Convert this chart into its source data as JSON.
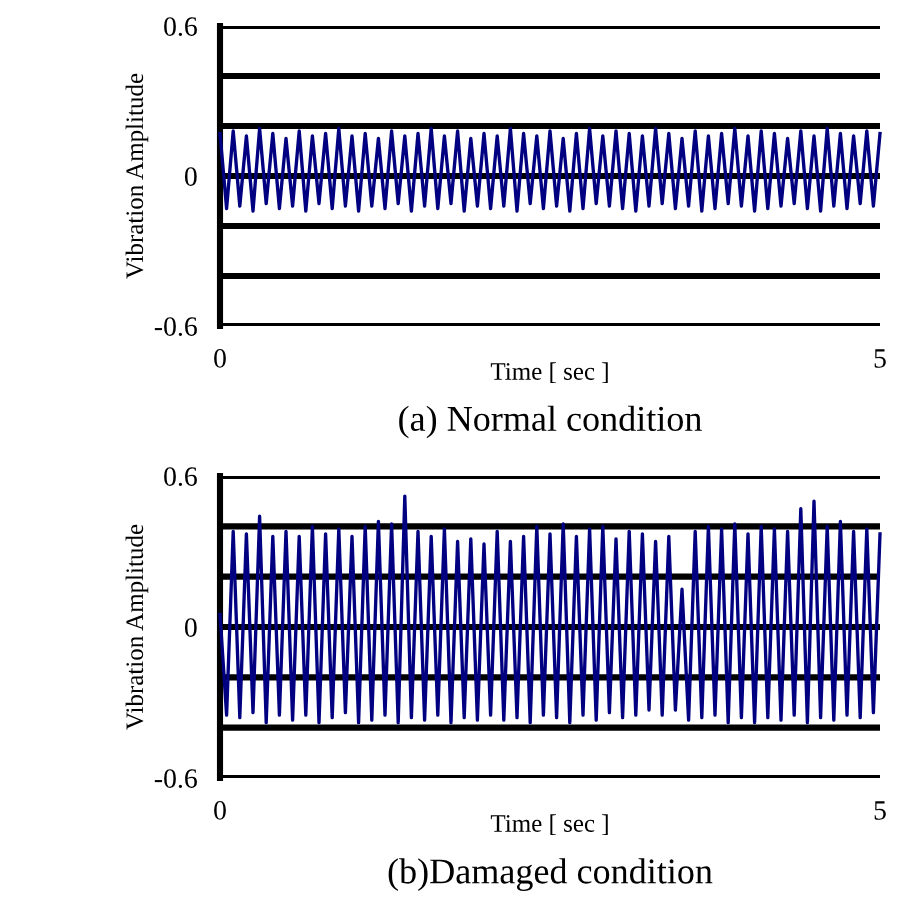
{
  "chart_data": [
    {
      "type": "line",
      "xlabel": "Time [ sec ]",
      "ylabel": "Vibration Amplitude",
      "annotations": [
        "(a) Normal condition"
      ],
      "x": [
        0,
        0.05,
        0.1,
        0.15,
        0.2,
        0.25,
        0.3,
        0.35,
        0.4,
        0.45,
        0.5,
        0.55,
        0.6,
        0.65,
        0.7,
        0.75,
        0.8,
        0.85,
        0.9,
        0.95,
        1.0,
        1.05,
        1.1,
        1.15,
        1.2,
        1.25,
        1.3,
        1.35,
        1.4,
        1.45,
        1.5,
        1.55,
        1.6,
        1.65,
        1.7,
        1.75,
        1.8,
        1.85,
        1.9,
        1.95,
        2.0,
        2.05,
        2.1,
        2.15,
        2.2,
        2.25,
        2.3,
        2.35,
        2.4,
        2.45,
        2.5,
        2.55,
        2.6,
        2.65,
        2.7,
        2.75,
        2.8,
        2.85,
        2.9,
        2.95,
        3.0,
        3.05,
        3.1,
        3.15,
        3.2,
        3.25,
        3.3,
        3.35,
        3.4,
        3.45,
        3.5,
        3.55,
        3.6,
        3.65,
        3.7,
        3.75,
        3.8,
        3.85,
        3.9,
        3.95,
        4.0,
        4.05,
        4.1,
        4.15,
        4.2,
        4.25,
        4.3,
        4.35,
        4.4,
        4.45,
        4.5,
        4.55,
        4.6,
        4.65,
        4.7,
        4.75,
        4.8,
        4.85,
        4.9,
        4.95,
        5.0
      ],
      "series": [
        {
          "color": "#000080",
          "values": [
            0.17,
            -0.13,
            0.18,
            -0.12,
            0.16,
            -0.14,
            0.19,
            -0.11,
            0.17,
            -0.13,
            0.15,
            -0.12,
            0.18,
            -0.14,
            0.16,
            -0.11,
            0.17,
            -0.13,
            0.19,
            -0.12,
            0.16,
            -0.14,
            0.17,
            -0.12,
            0.15,
            -0.13,
            0.18,
            -0.11,
            0.16,
            -0.14,
            0.17,
            -0.12,
            0.19,
            -0.13,
            0.16,
            -0.11,
            0.18,
            -0.14,
            0.15,
            -0.12,
            0.17,
            -0.13,
            0.16,
            -0.12,
            0.19,
            -0.14,
            0.17,
            -0.11,
            0.16,
            -0.13,
            0.18,
            -0.12,
            0.15,
            -0.14,
            0.17,
            -0.13,
            0.19,
            -0.11,
            0.16,
            -0.12,
            0.18,
            -0.13,
            0.17,
            -0.14,
            0.16,
            -0.12,
            0.19,
            -0.11,
            0.17,
            -0.13,
            0.15,
            -0.12,
            0.18,
            -0.14,
            0.16,
            -0.13,
            0.17,
            -0.11,
            0.19,
            -0.12,
            0.16,
            -0.14,
            0.18,
            -0.13,
            0.17,
            -0.12,
            0.15,
            -0.11,
            0.18,
            -0.13,
            0.16,
            -0.14,
            0.19,
            -0.12,
            0.17,
            -0.13,
            0.16,
            -0.11,
            0.18,
            -0.12,
            0.17
          ]
        }
      ],
      "xlim": [
        0,
        5
      ],
      "xticks": [
        0,
        5
      ],
      "ylim": [
        -0.6,
        0.6
      ],
      "yticks": [
        -0.6,
        {
          "value": -0.4,
          "label": null
        },
        {
          "value": -0.2,
          "label": null
        },
        0,
        {
          "value": 0.2,
          "label": null
        },
        {
          "value": 0.4,
          "label": null
        },
        0.6
      ],
      "grid": "y"
    },
    {
      "type": "line",
      "xlabel": "Time [ sec ]",
      "ylabel": "Vibration Amplitude",
      "annotations": [
        "(b)Damaged condition"
      ],
      "x": [
        0,
        0.05,
        0.1,
        0.15,
        0.2,
        0.25,
        0.3,
        0.35,
        0.4,
        0.45,
        0.5,
        0.55,
        0.6,
        0.65,
        0.7,
        0.75,
        0.8,
        0.85,
        0.9,
        0.95,
        1.0,
        1.05,
        1.1,
        1.15,
        1.2,
        1.25,
        1.3,
        1.35,
        1.4,
        1.45,
        1.5,
        1.55,
        1.6,
        1.65,
        1.7,
        1.75,
        1.8,
        1.85,
        1.9,
        1.95,
        2.0,
        2.05,
        2.1,
        2.15,
        2.2,
        2.25,
        2.3,
        2.35,
        2.4,
        2.45,
        2.5,
        2.55,
        2.6,
        2.65,
        2.7,
        2.75,
        2.8,
        2.85,
        2.9,
        2.95,
        3.0,
        3.05,
        3.1,
        3.15,
        3.2,
        3.25,
        3.3,
        3.35,
        3.4,
        3.45,
        3.5,
        3.55,
        3.6,
        3.65,
        3.7,
        3.75,
        3.8,
        3.85,
        3.9,
        3.95,
        4.0,
        4.05,
        4.1,
        4.15,
        4.2,
        4.25,
        4.3,
        4.35,
        4.4,
        4.45,
        4.5,
        4.55,
        4.6,
        4.65,
        4.7,
        4.75,
        4.8,
        4.85,
        4.9,
        4.95,
        5.0
      ],
      "series": [
        {
          "color": "#000080",
          "values": [
            0.05,
            -0.35,
            0.38,
            -0.36,
            0.37,
            -0.34,
            0.44,
            -0.38,
            0.36,
            -0.35,
            0.38,
            -0.37,
            0.36,
            -0.35,
            0.4,
            -0.38,
            0.37,
            -0.36,
            0.39,
            -0.34,
            0.36,
            -0.38,
            0.4,
            -0.37,
            0.42,
            -0.35,
            0.41,
            -0.38,
            0.52,
            -0.36,
            0.38,
            -0.37,
            0.36,
            -0.35,
            0.39,
            -0.38,
            0.34,
            -0.36,
            0.35,
            -0.37,
            0.33,
            -0.35,
            0.38,
            -0.37,
            0.34,
            -0.36,
            0.36,
            -0.38,
            0.4,
            -0.35,
            0.37,
            -0.36,
            0.41,
            -0.38,
            0.36,
            -0.35,
            0.39,
            -0.37,
            0.4,
            -0.34,
            0.35,
            -0.36,
            0.38,
            -0.35,
            0.37,
            -0.33,
            0.34,
            -0.35,
            0.36,
            -0.33,
            0.15,
            -0.37,
            0.38,
            -0.36,
            0.4,
            -0.35,
            0.39,
            -0.38,
            0.41,
            -0.36,
            0.37,
            -0.38,
            0.4,
            -0.36,
            0.39,
            -0.37,
            0.38,
            -0.35,
            0.47,
            -0.38,
            0.5,
            -0.36,
            0.4,
            -0.37,
            0.42,
            -0.35,
            0.38,
            -0.36,
            0.39,
            -0.34,
            0.37
          ]
        }
      ],
      "xlim": [
        0,
        5
      ],
      "xticks": [
        0,
        5
      ],
      "ylim": [
        -0.6,
        0.6
      ],
      "yticks": [
        -0.6,
        {
          "value": -0.4,
          "label": null
        },
        {
          "value": -0.2,
          "label": null
        },
        0,
        {
          "value": 0.2,
          "label": null
        },
        {
          "value": 0.4,
          "label": null
        },
        0.6
      ],
      "grid": "y"
    }
  ]
}
